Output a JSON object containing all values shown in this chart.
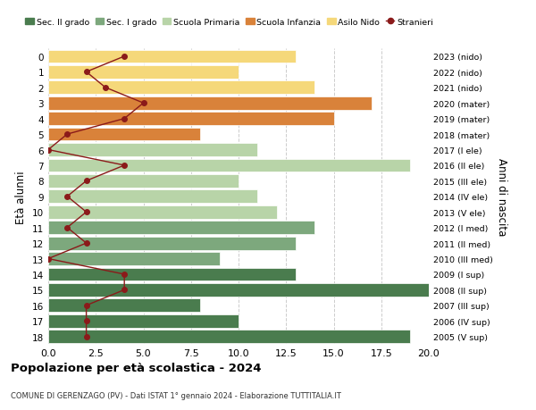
{
  "ages": [
    18,
    17,
    16,
    15,
    14,
    13,
    12,
    11,
    10,
    9,
    8,
    7,
    6,
    5,
    4,
    3,
    2,
    1,
    0
  ],
  "years": [
    "2005 (V sup)",
    "2006 (IV sup)",
    "2007 (III sup)",
    "2008 (II sup)",
    "2009 (I sup)",
    "2010 (III med)",
    "2011 (II med)",
    "2012 (I med)",
    "2013 (V ele)",
    "2014 (IV ele)",
    "2015 (III ele)",
    "2016 (II ele)",
    "2017 (I ele)",
    "2018 (mater)",
    "2019 (mater)",
    "2020 (mater)",
    "2021 (nido)",
    "2022 (nido)",
    "2023 (nido)"
  ],
  "bar_values": [
    19,
    10,
    8,
    20,
    13,
    9,
    13,
    14,
    12,
    11,
    10,
    19,
    11,
    8,
    15,
    17,
    14,
    10,
    13
  ],
  "bar_colors": [
    "#4a7c4e",
    "#4a7c4e",
    "#4a7c4e",
    "#4a7c4e",
    "#4a7c4e",
    "#7da87d",
    "#7da87d",
    "#7da87d",
    "#b8d4a8",
    "#b8d4a8",
    "#b8d4a8",
    "#b8d4a8",
    "#b8d4a8",
    "#d9823a",
    "#d9823a",
    "#d9823a",
    "#f5d87a",
    "#f5d87a",
    "#f5d87a"
  ],
  "stranieri_values": [
    2,
    2,
    2,
    4,
    4,
    0,
    2,
    1,
    2,
    1,
    2,
    4,
    0,
    1,
    4,
    5,
    3,
    2,
    4
  ],
  "legend_labels": [
    "Sec. II grado",
    "Sec. I grado",
    "Scuola Primaria",
    "Scuola Infanzia",
    "Asilo Nido",
    "Stranieri"
  ],
  "legend_colors": [
    "#4a7c4e",
    "#7da87d",
    "#b8d4a8",
    "#d9823a",
    "#f5d87a",
    "#8b1a1a"
  ],
  "title": "Popolazione per età scolastica - 2024",
  "subtitle": "COMUNE DI GERENZAGO (PV) - Dati ISTAT 1° gennaio 2024 - Elaborazione TUTTITALIA.IT",
  "ylabel_left": "Età alunni",
  "ylabel_right": "Anni di nascita",
  "xlim": [
    0,
    20
  ],
  "stranieri_color": "#8b1a1a",
  "line_color": "#8b1a1a",
  "bg_color": "#ffffff",
  "grid_color": "#cccccc"
}
